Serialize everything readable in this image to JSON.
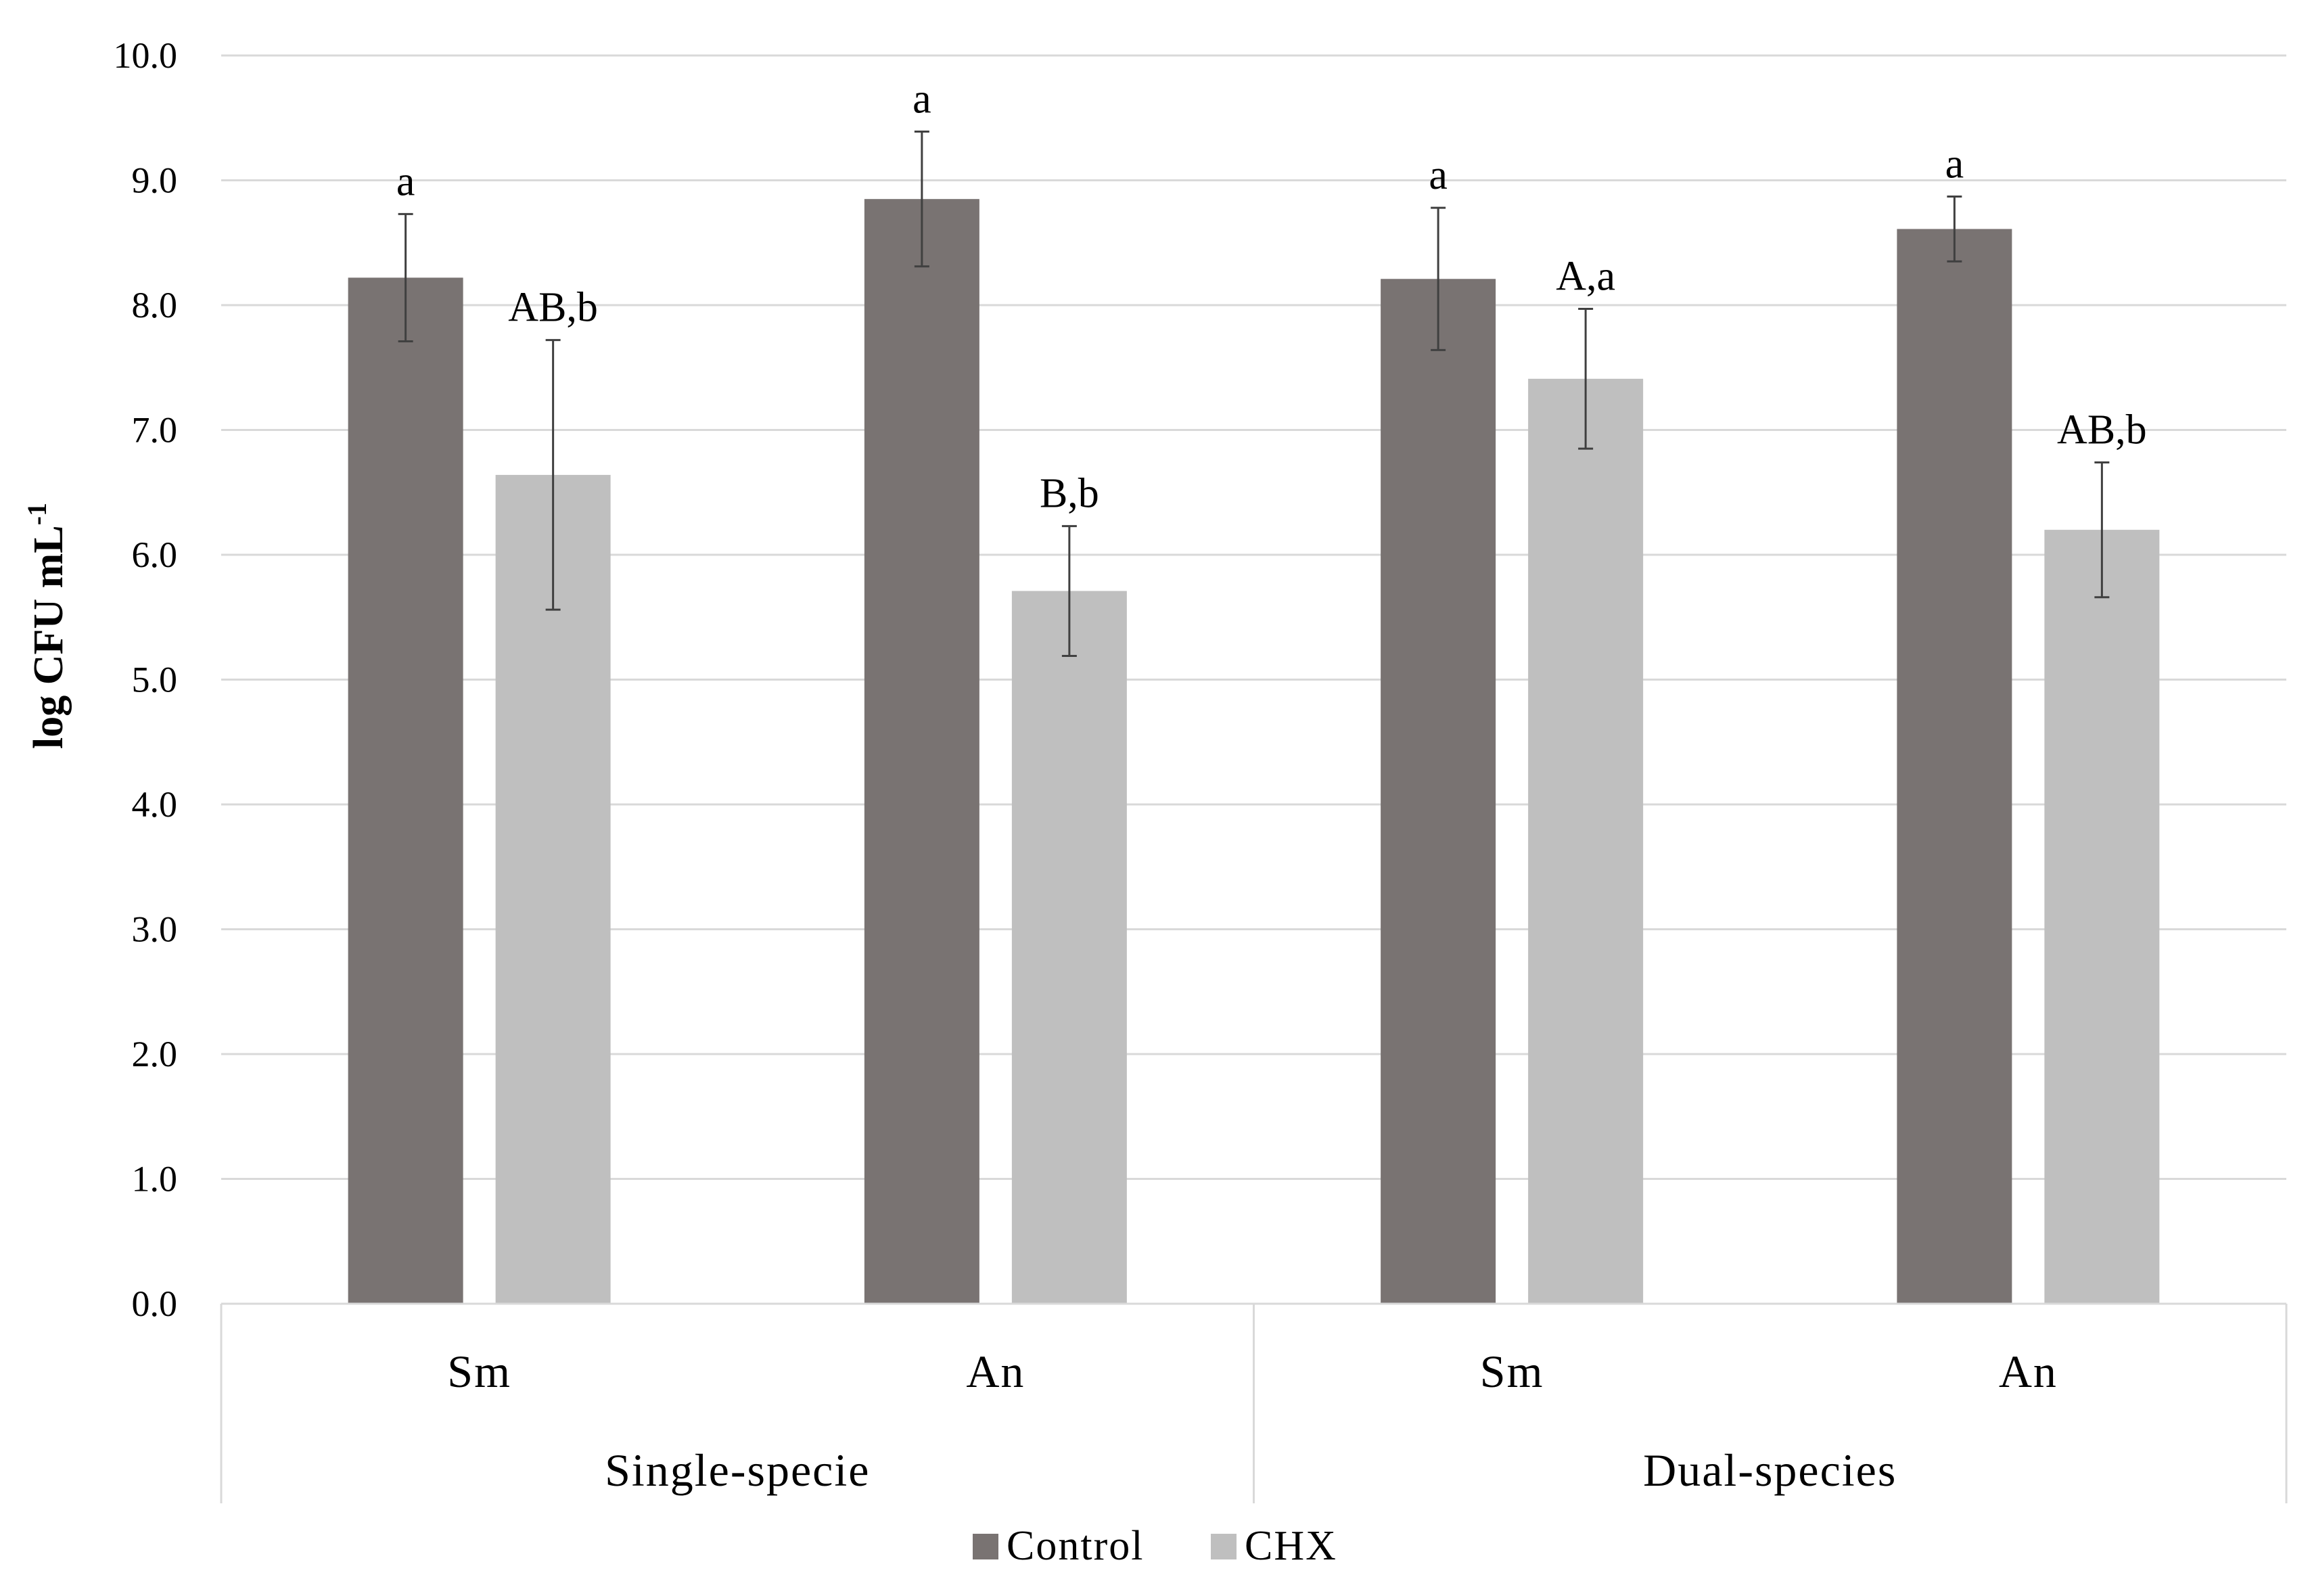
{
  "chart_data": {
    "type": "bar",
    "ylabel": "log CFU mL",
    "ylabel_superscript": "-1",
    "ylim": [
      0,
      10
    ],
    "yticks": [
      "0.0",
      "1.0",
      "2.0",
      "3.0",
      "4.0",
      "5.0",
      "6.0",
      "7.0",
      "8.0",
      "9.0",
      "10.0"
    ],
    "grid": true,
    "legend_position": "bottom",
    "groups": [
      {
        "label": "Single-specie",
        "categories": [
          "Sm",
          "An"
        ]
      },
      {
        "label": "Dual-species",
        "categories": [
          "Sm",
          "An"
        ]
      }
    ],
    "categories": [
      "Sm",
      "An",
      "Sm",
      "An"
    ],
    "series": [
      {
        "name": "Control",
        "color": "#797372",
        "values": [
          8.22,
          8.85,
          8.21,
          8.61
        ],
        "errors": [
          0.51,
          0.54,
          0.57,
          0.26
        ],
        "annotations": [
          "a",
          "a",
          "a",
          "a"
        ]
      },
      {
        "name": "CHX",
        "color": "#bfbfbf",
        "values": [
          6.64,
          5.71,
          7.41,
          6.2
        ],
        "errors": [
          1.08,
          0.52,
          0.56,
          0.54
        ],
        "annotations": [
          "AB,b",
          "B,b",
          "A,a",
          "AB,b"
        ]
      }
    ]
  }
}
